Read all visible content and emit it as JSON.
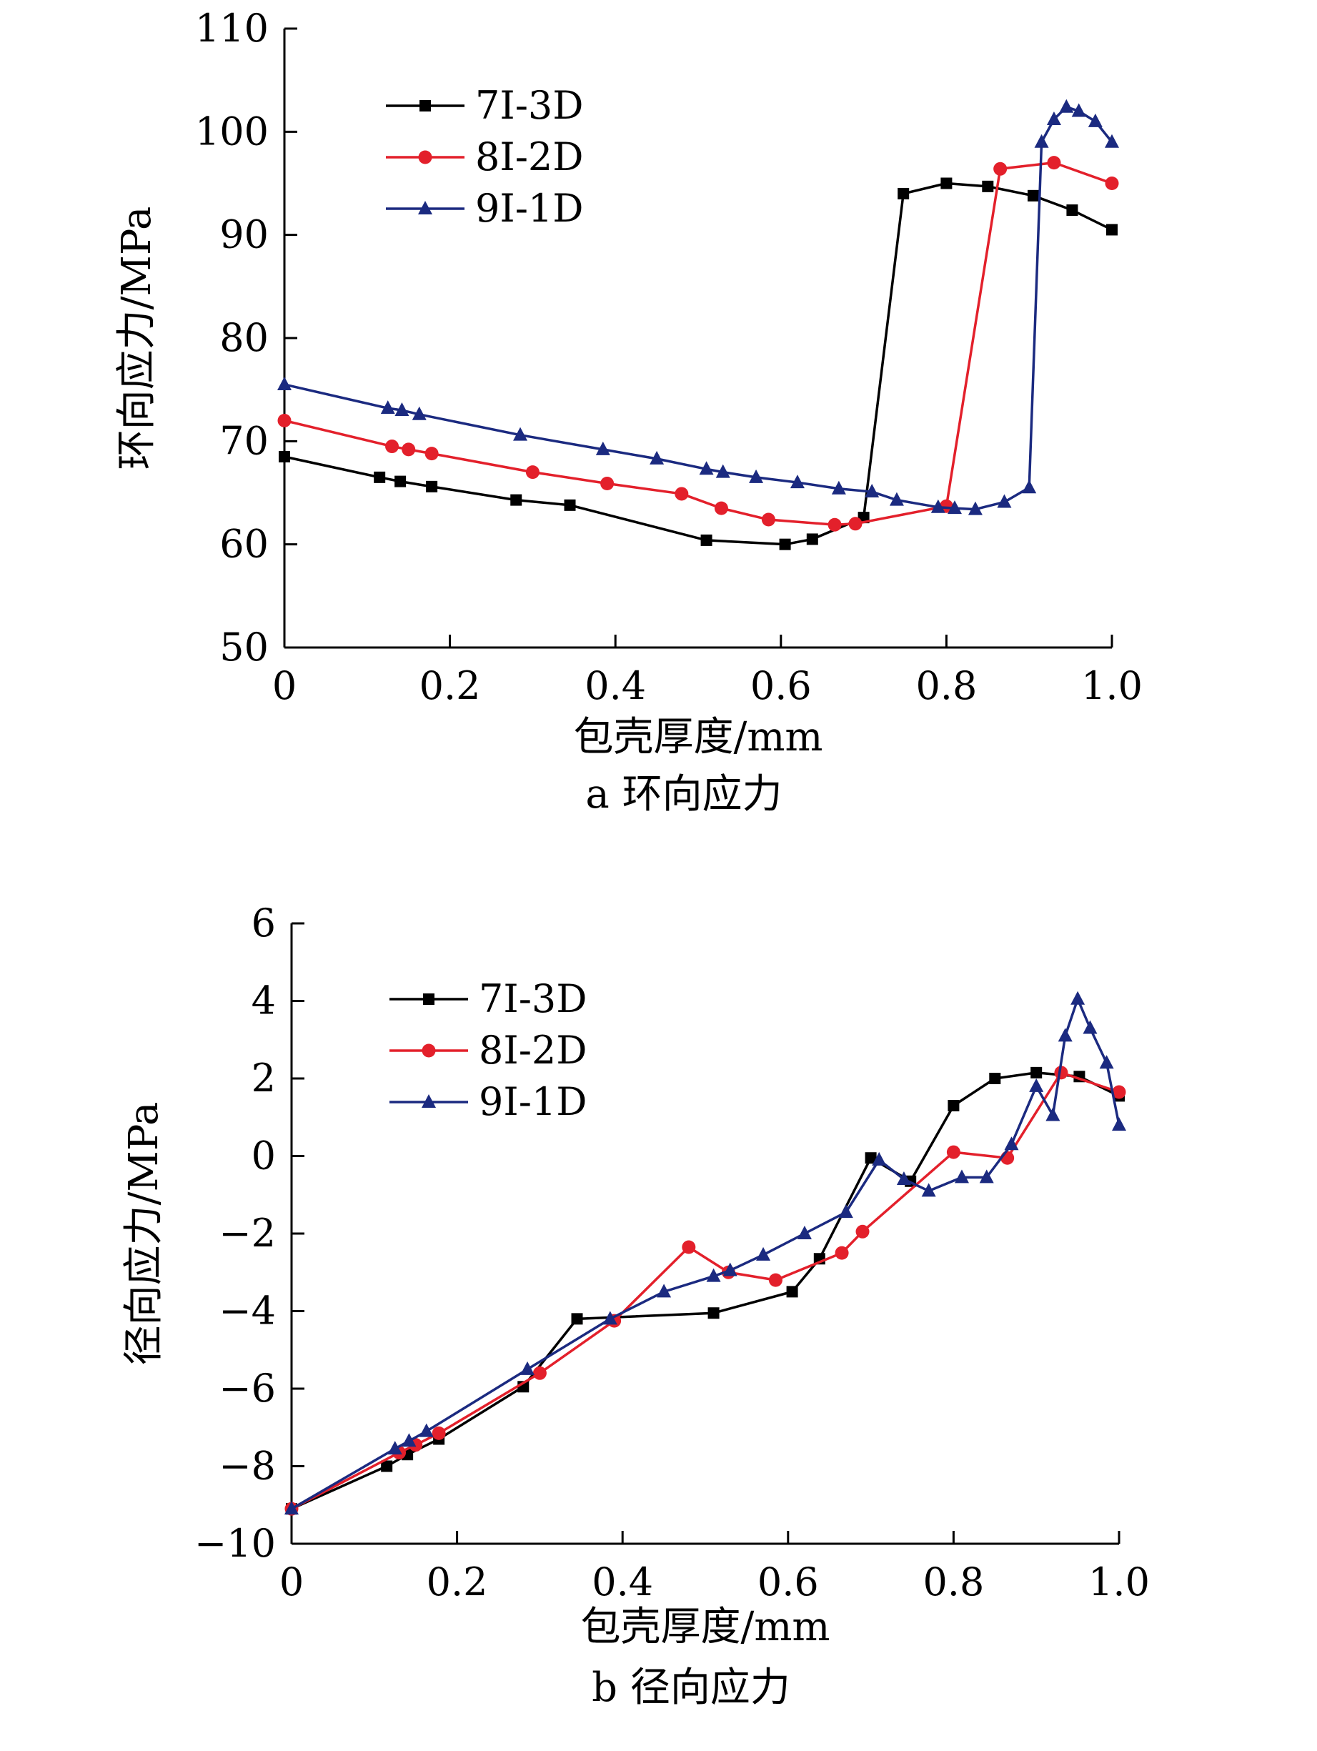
{
  "chart_data": [
    {
      "type": "line",
      "caption": "a 环向应力",
      "xlabel": "包壳厚度/mm",
      "ylabel": "环向应力/MPa",
      "xlim": [
        0,
        1.0
      ],
      "ylim": [
        50,
        110
      ],
      "xticks": [
        "0",
        "0.2",
        "0.4",
        "0.6",
        "0.8",
        "1.0"
      ],
      "yticks": [
        "50",
        "60",
        "70",
        "80",
        "90",
        "100",
        "110"
      ],
      "legend_position": "top-left",
      "grid": false,
      "series": [
        {
          "name": "7I-3D",
          "color": "#000000",
          "marker": "square",
          "points": [
            [
              0,
              68.5
            ],
            [
              0.115,
              66.5
            ],
            [
              0.14,
              66.1
            ],
            [
              0.178,
              65.6
            ],
            [
              0.28,
              64.3
            ],
            [
              0.345,
              63.8
            ],
            [
              0.51,
              60.4
            ],
            [
              0.605,
              60.0
            ],
            [
              0.638,
              60.5
            ],
            [
              0.7,
              62.6
            ],
            [
              0.748,
              94.0
            ],
            [
              0.8,
              95.0
            ],
            [
              0.85,
              94.7
            ],
            [
              0.905,
              93.8
            ],
            [
              0.952,
              92.4
            ],
            [
              1.0,
              90.5
            ]
          ]
        },
        {
          "name": "8I-2D",
          "color": "#e3202b",
          "marker": "circle",
          "points": [
            [
              0,
              72.0
            ],
            [
              0.13,
              69.5
            ],
            [
              0.15,
              69.2
            ],
            [
              0.178,
              68.8
            ],
            [
              0.3,
              67.0
            ],
            [
              0.39,
              65.9
            ],
            [
              0.48,
              64.9
            ],
            [
              0.528,
              63.5
            ],
            [
              0.585,
              62.4
            ],
            [
              0.665,
              61.9
            ],
            [
              0.69,
              62.0
            ],
            [
              0.8,
              63.7
            ],
            [
              0.865,
              96.4
            ],
            [
              0.93,
              97.0
            ],
            [
              1.0,
              95.0
            ]
          ]
        },
        {
          "name": "9I-1D",
          "color": "#1b2a80",
          "marker": "triangle",
          "points": [
            [
              0,
              75.5
            ],
            [
              0.125,
              73.2
            ],
            [
              0.142,
              73.0
            ],
            [
              0.163,
              72.6
            ],
            [
              0.285,
              70.6
            ],
            [
              0.385,
              69.2
            ],
            [
              0.45,
              68.3
            ],
            [
              0.51,
              67.3
            ],
            [
              0.53,
              67.0
            ],
            [
              0.57,
              66.5
            ],
            [
              0.62,
              66.0
            ],
            [
              0.67,
              65.4
            ],
            [
              0.71,
              65.1
            ],
            [
              0.74,
              64.3
            ],
            [
              0.79,
              63.6
            ],
            [
              0.81,
              63.5
            ],
            [
              0.835,
              63.4
            ],
            [
              0.87,
              64.1
            ],
            [
              0.9,
              65.5
            ],
            [
              0.915,
              99.0
            ],
            [
              0.93,
              101.2
            ],
            [
              0.945,
              102.4
            ],
            [
              0.96,
              102.0
            ],
            [
              0.98,
              101.0
            ],
            [
              1.0,
              99.0
            ]
          ]
        }
      ]
    },
    {
      "type": "line",
      "caption": "b 径向应力",
      "xlabel": "包壳厚度/mm",
      "ylabel": "径向应力/MPa",
      "xlim": [
        0,
        1.0
      ],
      "ylim": [
        -10,
        6
      ],
      "xticks": [
        "0",
        "0.2",
        "0.4",
        "0.6",
        "0.8",
        "1.0"
      ],
      "yticks": [
        "−10",
        "−8",
        "−6",
        "−4",
        "−2",
        "0",
        "2",
        "4",
        "6"
      ],
      "legend_position": "top-left",
      "grid": false,
      "series": [
        {
          "name": "7I-3D",
          "color": "#000000",
          "marker": "square",
          "points": [
            [
              0,
              -9.1
            ],
            [
              0.115,
              -8.0
            ],
            [
              0.14,
              -7.7
            ],
            [
              0.178,
              -7.3
            ],
            [
              0.28,
              -5.95
            ],
            [
              0.345,
              -4.2
            ],
            [
              0.51,
              -4.05
            ],
            [
              0.605,
              -3.5
            ],
            [
              0.638,
              -2.65
            ],
            [
              0.7,
              -0.05
            ],
            [
              0.748,
              -0.65
            ],
            [
              0.8,
              1.3
            ],
            [
              0.85,
              2.0
            ],
            [
              0.9,
              2.15
            ],
            [
              0.952,
              2.05
            ],
            [
              1.0,
              1.55
            ]
          ]
        },
        {
          "name": "8I-2D",
          "color": "#e3202b",
          "marker": "circle",
          "points": [
            [
              0,
              -9.1
            ],
            [
              0.13,
              -7.65
            ],
            [
              0.15,
              -7.45
            ],
            [
              0.178,
              -7.15
            ],
            [
              0.3,
              -5.6
            ],
            [
              0.39,
              -4.25
            ],
            [
              0.48,
              -2.35
            ],
            [
              0.528,
              -3.0
            ],
            [
              0.585,
              -3.2
            ],
            [
              0.665,
              -2.5
            ],
            [
              0.69,
              -1.95
            ],
            [
              0.8,
              0.1
            ],
            [
              0.865,
              -0.05
            ],
            [
              0.93,
              2.15
            ],
            [
              1.0,
              1.65
            ]
          ]
        },
        {
          "name": "9I-1D",
          "color": "#1b2a80",
          "marker": "triangle",
          "points": [
            [
              0,
              -9.1
            ],
            [
              0.125,
              -7.55
            ],
            [
              0.142,
              -7.35
            ],
            [
              0.163,
              -7.1
            ],
            [
              0.285,
              -5.5
            ],
            [
              0.385,
              -4.2
            ],
            [
              0.45,
              -3.5
            ],
            [
              0.51,
              -3.1
            ],
            [
              0.53,
              -2.95
            ],
            [
              0.57,
              -2.55
            ],
            [
              0.62,
              -2.0
            ],
            [
              0.67,
              -1.45
            ],
            [
              0.71,
              -0.1
            ],
            [
              0.74,
              -0.6
            ],
            [
              0.77,
              -0.9
            ],
            [
              0.81,
              -0.55
            ],
            [
              0.84,
              -0.55
            ],
            [
              0.87,
              0.3
            ],
            [
              0.9,
              1.8
            ],
            [
              0.92,
              1.05
            ],
            [
              0.935,
              3.1
            ],
            [
              0.95,
              4.05
            ],
            [
              0.965,
              3.3
            ],
            [
              0.985,
              2.4
            ],
            [
              1.0,
              0.8
            ]
          ]
        }
      ]
    }
  ]
}
